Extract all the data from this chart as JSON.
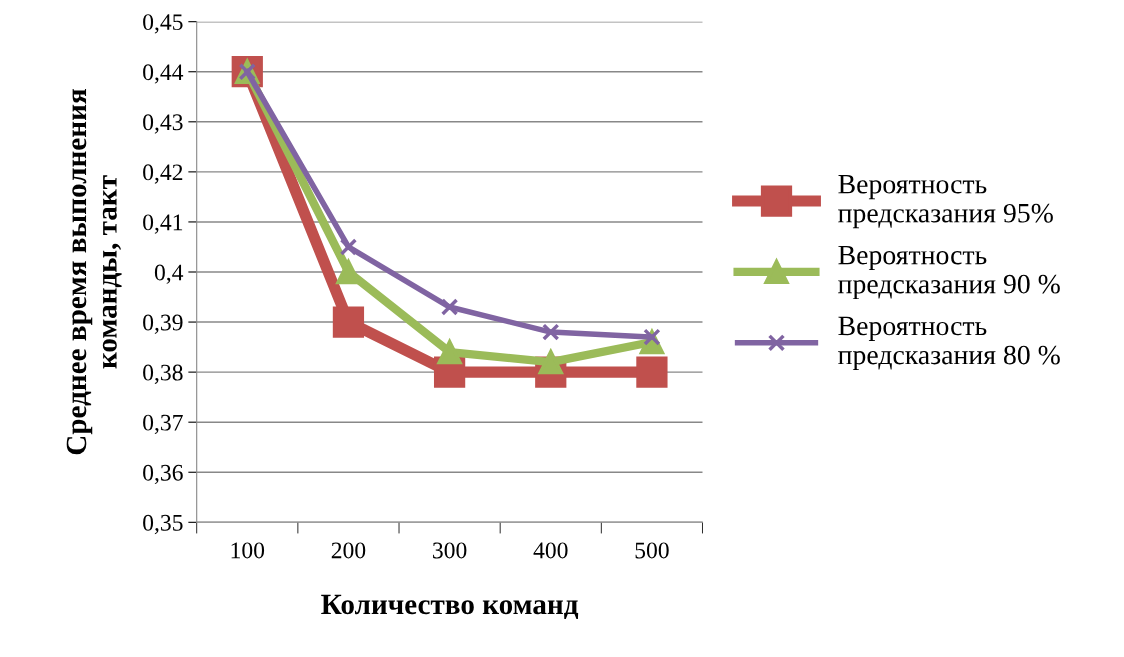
{
  "chart_data": {
    "type": "line",
    "xlabel": "Количество команд",
    "ylabel": "Среднее время выполнения\nкоманды, такт",
    "categories": [
      "100",
      "200",
      "300",
      "400",
      "500"
    ],
    "series": [
      {
        "name": "Вероятность\nпредсказания 95%",
        "color": "#c0504d",
        "marker": "square",
        "values": [
          0.44,
          0.39,
          0.38,
          0.38,
          0.38
        ]
      },
      {
        "name": "Вероятность\nпредсказания 90 %",
        "color": "#9bbb59",
        "marker": "triangle",
        "values": [
          0.44,
          0.4,
          0.384,
          0.382,
          0.386
        ]
      },
      {
        "name": "Вероятность\nпредсказания 80 %",
        "color": "#8064a2",
        "marker": "cross",
        "values": [
          0.44,
          0.405,
          0.393,
          0.388,
          0.387
        ]
      }
    ],
    "ylim": [
      0.35,
      0.45
    ],
    "yticks": [
      {
        "value": 0.35,
        "label": "0,35"
      },
      {
        "value": 0.36,
        "label": "0,36"
      },
      {
        "value": 0.37,
        "label": "0,37"
      },
      {
        "value": 0.38,
        "label": "0,38"
      },
      {
        "value": 0.39,
        "label": "0,39"
      },
      {
        "value": 0.4,
        "label": "0,4"
      },
      {
        "value": 0.41,
        "label": "0,41"
      },
      {
        "value": 0.42,
        "label": "0,42"
      },
      {
        "value": 0.43,
        "label": "0,43"
      },
      {
        "value": 0.44,
        "label": "0,44"
      },
      {
        "value": 0.45,
        "label": "0,45"
      }
    ],
    "grid": "y",
    "legend": "right",
    "line_style": "solid"
  }
}
